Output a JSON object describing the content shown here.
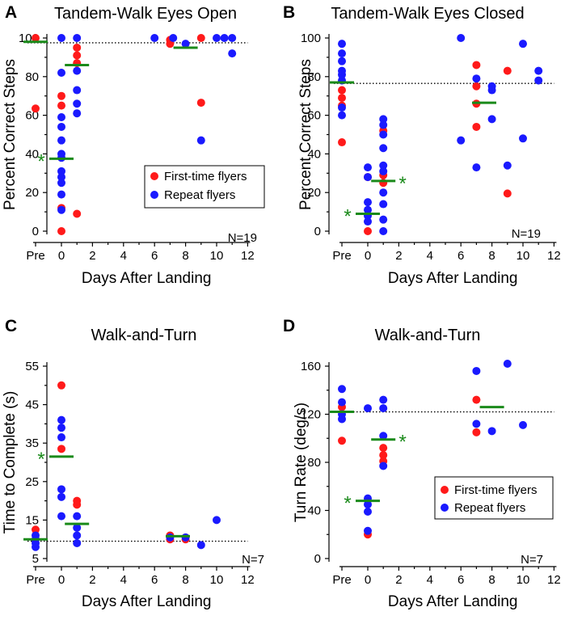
{
  "colors": {
    "first_time": "#ff1a1a",
    "repeat": "#1a1aff",
    "mean": "#1a8a1a"
  },
  "chart_data": [
    {
      "type": "scatter",
      "panel_letter": "A",
      "title": "Tandem-Walk Eyes Open",
      "ylabel": "Percent Correct Steps",
      "xlabel": "Days After Landing",
      "xticks": [
        "Pre",
        "0",
        "2",
        "4",
        "6",
        "8",
        "10",
        "12"
      ],
      "yticks": [
        "0",
        "20",
        "40",
        "60",
        "80",
        "100"
      ],
      "ylim": [
        0,
        100
      ],
      "reference_line": 97.5,
      "n_label": "N=19",
      "legend": [
        "First-time flyers",
        "Repeat flyers"
      ],
      "legend_position": "middle-right",
      "series": [
        {
          "name": "First-time flyers",
          "points": [
            {
              "x": "Pre",
              "y": 100
            },
            {
              "x": "Pre",
              "y": 63.5
            },
            {
              "x": 0,
              "y": 70
            },
            {
              "x": 0,
              "y": 65
            },
            {
              "x": 0,
              "y": 12
            },
            {
              "x": 0,
              "y": 0
            },
            {
              "x": 1,
              "y": 95
            },
            {
              "x": 1,
              "y": 91
            },
            {
              "x": 1,
              "y": 87
            },
            {
              "x": 1,
              "y": 9
            },
            {
              "x": 7,
              "y": 99
            },
            {
              "x": 7,
              "y": 97
            },
            {
              "x": 9,
              "y": 100
            },
            {
              "x": 9,
              "y": 66.5
            }
          ]
        },
        {
          "name": "Repeat flyers",
          "points": [
            {
              "x": 0,
              "y": 100
            },
            {
              "x": 0,
              "y": 82
            },
            {
              "x": 0,
              "y": 59
            },
            {
              "x": 0,
              "y": 54
            },
            {
              "x": 0,
              "y": 47
            },
            {
              "x": 0,
              "y": 40
            },
            {
              "x": 0,
              "y": 38
            },
            {
              "x": 0,
              "y": 31
            },
            {
              "x": 0,
              "y": 28
            },
            {
              "x": 0,
              "y": 25
            },
            {
              "x": 0,
              "y": 19
            },
            {
              "x": 0,
              "y": 11
            },
            {
              "x": 1,
              "y": 100
            },
            {
              "x": 1,
              "y": 83
            },
            {
              "x": 1,
              "y": 73
            },
            {
              "x": 1,
              "y": 66
            },
            {
              "x": 1,
              "y": 61
            },
            {
              "x": 6,
              "y": 100
            },
            {
              "x": 7.2,
              "y": 100
            },
            {
              "x": 8,
              "y": 97
            },
            {
              "x": 9,
              "y": 47
            },
            {
              "x": 10,
              "y": 100
            },
            {
              "x": 10.5,
              "y": 100
            },
            {
              "x": 11,
              "y": 100
            },
            {
              "x": 11,
              "y": 92
            }
          ]
        }
      ],
      "means": [
        {
          "x": "Pre",
          "y": 98,
          "significant": false
        },
        {
          "x": 0,
          "y": 37.5,
          "significant": true
        },
        {
          "x": 1,
          "y": 86,
          "significant": false
        },
        {
          "x": 8,
          "y": 95,
          "significant": false
        }
      ]
    },
    {
      "type": "scatter",
      "panel_letter": "B",
      "title": "Tandem-Walk Eyes Closed",
      "ylabel": "Percent Correct Steps",
      "xlabel": "Days After Landing",
      "xticks": [
        "Pre",
        "0",
        "2",
        "4",
        "6",
        "8",
        "10",
        "12"
      ],
      "yticks": [
        "0",
        "20",
        "40",
        "60",
        "80",
        "100"
      ],
      "ylim": [
        0,
        100
      ],
      "reference_line": 76.5,
      "n_label": "N=19",
      "series": [
        {
          "name": "First-time flyers",
          "points": [
            {
              "x": "Pre",
              "y": 73
            },
            {
              "x": "Pre",
              "y": 69
            },
            {
              "x": "Pre",
              "y": 65
            },
            {
              "x": "Pre",
              "y": 46
            },
            {
              "x": 0,
              "y": 28
            },
            {
              "x": 0,
              "y": 0
            },
            {
              "x": 1,
              "y": 52
            },
            {
              "x": 1,
              "y": 29
            },
            {
              "x": 1,
              "y": 25
            },
            {
              "x": 7,
              "y": 86
            },
            {
              "x": 7,
              "y": 75
            },
            {
              "x": 7,
              "y": 66
            },
            {
              "x": 7,
              "y": 54
            },
            {
              "x": 9,
              "y": 83
            },
            {
              "x": 9,
              "y": 19.5
            }
          ]
        },
        {
          "name": "Repeat flyers",
          "points": [
            {
              "x": "Pre",
              "y": 97
            },
            {
              "x": "Pre",
              "y": 92
            },
            {
              "x": "Pre",
              "y": 88
            },
            {
              "x": "Pre",
              "y": 83
            },
            {
              "x": "Pre",
              "y": 81
            },
            {
              "x": "Pre",
              "y": 78
            },
            {
              "x": "Pre",
              "y": 64
            },
            {
              "x": "Pre",
              "y": 60
            },
            {
              "x": 0,
              "y": 33
            },
            {
              "x": 0,
              "y": 28
            },
            {
              "x": 0,
              "y": 15
            },
            {
              "x": 0,
              "y": 11
            },
            {
              "x": 0,
              "y": 8
            },
            {
              "x": 0,
              "y": 5
            },
            {
              "x": 1,
              "y": 58
            },
            {
              "x": 1,
              "y": 55
            },
            {
              "x": 1,
              "y": 50
            },
            {
              "x": 1,
              "y": 43
            },
            {
              "x": 1,
              "y": 34
            },
            {
              "x": 1,
              "y": 31
            },
            {
              "x": 1,
              "y": 20
            },
            {
              "x": 1,
              "y": 14
            },
            {
              "x": 1,
              "y": 6
            },
            {
              "x": 1,
              "y": 0
            },
            {
              "x": 6,
              "y": 100
            },
            {
              "x": 6,
              "y": 47
            },
            {
              "x": 7,
              "y": 79
            },
            {
              "x": 7,
              "y": 33
            },
            {
              "x": 8,
              "y": 75
            },
            {
              "x": 8,
              "y": 73
            },
            {
              "x": 8,
              "y": 58
            },
            {
              "x": 9,
              "y": 34
            },
            {
              "x": 10,
              "y": 97
            },
            {
              "x": 10,
              "y": 48
            },
            {
              "x": 11,
              "y": 83
            },
            {
              "x": 11,
              "y": 78
            }
          ]
        }
      ],
      "means": [
        {
          "x": "Pre",
          "y": 77,
          "significant": false
        },
        {
          "x": 0,
          "y": 9,
          "significant": true
        },
        {
          "x": 1,
          "y": 26,
          "significant": true
        },
        {
          "x": 7.5,
          "y": 66.5,
          "significant": false
        }
      ]
    },
    {
      "type": "scatter",
      "panel_letter": "C",
      "title": "Walk-and-Turn",
      "ylabel": "Time to Complete (s)",
      "xlabel": "Days After Landing",
      "xticks": [
        "Pre",
        "0",
        "2",
        "4",
        "6",
        "8",
        "10",
        "12"
      ],
      "yticks": [
        "5",
        "15",
        "25",
        "35",
        "45",
        "55"
      ],
      "ylim": [
        5,
        55
      ],
      "reference_line": 9.5,
      "n_label": "N=7",
      "series": [
        {
          "name": "First-time flyers",
          "points": [
            {
              "x": "Pre",
              "y": 12.5
            },
            {
              "x": 0,
              "y": 50
            },
            {
              "x": 0,
              "y": 33.5
            },
            {
              "x": 1,
              "y": 20
            },
            {
              "x": 1,
              "y": 19
            },
            {
              "x": 7,
              "y": 11
            },
            {
              "x": 7,
              "y": 10
            },
            {
              "x": 8,
              "y": 10
            }
          ]
        },
        {
          "name": "Repeat flyers",
          "points": [
            {
              "x": "Pre",
              "y": 11
            },
            {
              "x": "Pre",
              "y": 10
            },
            {
              "x": "Pre",
              "y": 9
            },
            {
              "x": "Pre",
              "y": 8
            },
            {
              "x": 0,
              "y": 41
            },
            {
              "x": 0,
              "y": 39
            },
            {
              "x": 0,
              "y": 36.5
            },
            {
              "x": 0,
              "y": 23
            },
            {
              "x": 0,
              "y": 21
            },
            {
              "x": 0,
              "y": 16
            },
            {
              "x": 1,
              "y": 16
            },
            {
              "x": 1,
              "y": 13
            },
            {
              "x": 1,
              "y": 11
            },
            {
              "x": 1,
              "y": 9
            },
            {
              "x": 7,
              "y": 10.5
            },
            {
              "x": 8,
              "y": 10.5
            },
            {
              "x": 9,
              "y": 8.5
            },
            {
              "x": 10,
              "y": 15
            }
          ]
        }
      ],
      "means": [
        {
          "x": "Pre",
          "y": 10,
          "significant": false
        },
        {
          "x": 0,
          "y": 31.5,
          "significant": true
        },
        {
          "x": 1,
          "y": 14,
          "significant": false
        },
        {
          "x": 7.5,
          "y": 10.8,
          "significant": false
        }
      ]
    },
    {
      "type": "scatter",
      "panel_letter": "D",
      "title": "Walk-and-Turn",
      "ylabel": "Turn Rate (deg/s)",
      "xlabel": "Days After Landing",
      "xticks": [
        "Pre",
        "0",
        "2",
        "4",
        "6",
        "8",
        "10",
        "12"
      ],
      "yticks": [
        "0",
        "40",
        "80",
        "120",
        "160"
      ],
      "ylim": [
        0,
        160
      ],
      "reference_line": 122,
      "n_label": "N=7",
      "legend": [
        "First-time flyers",
        "Repeat flyers"
      ],
      "legend_position": "lower-right",
      "series": [
        {
          "name": "First-time flyers",
          "points": [
            {
              "x": "Pre",
              "y": 126
            },
            {
              "x": "Pre",
              "y": 98
            },
            {
              "x": 0,
              "y": 20
            },
            {
              "x": 1,
              "y": 92
            },
            {
              "x": 1,
              "y": 86
            },
            {
              "x": 1,
              "y": 81
            },
            {
              "x": 7,
              "y": 132
            },
            {
              "x": 7,
              "y": 105
            }
          ]
        },
        {
          "name": "Repeat flyers",
          "points": [
            {
              "x": "Pre",
              "y": 141
            },
            {
              "x": "Pre",
              "y": 130
            },
            {
              "x": "Pre",
              "y": 120
            },
            {
              "x": "Pre",
              "y": 116
            },
            {
              "x": 0,
              "y": 125
            },
            {
              "x": 0,
              "y": 50
            },
            {
              "x": 0,
              "y": 45
            },
            {
              "x": 0,
              "y": 39
            },
            {
              "x": 0,
              "y": 23
            },
            {
              "x": 1,
              "y": 132
            },
            {
              "x": 1,
              "y": 125
            },
            {
              "x": 1,
              "y": 102
            },
            {
              "x": 1,
              "y": 77
            },
            {
              "x": 7,
              "y": 156
            },
            {
              "x": 7,
              "y": 112
            },
            {
              "x": 8,
              "y": 106
            },
            {
              "x": 9,
              "y": 162
            },
            {
              "x": 10,
              "y": 111
            }
          ]
        }
      ],
      "means": [
        {
          "x": "Pre",
          "y": 122,
          "significant": false
        },
        {
          "x": 0,
          "y": 48,
          "significant": true
        },
        {
          "x": 1,
          "y": 99,
          "significant": true
        },
        {
          "x": 8,
          "y": 126,
          "significant": false
        }
      ]
    }
  ]
}
